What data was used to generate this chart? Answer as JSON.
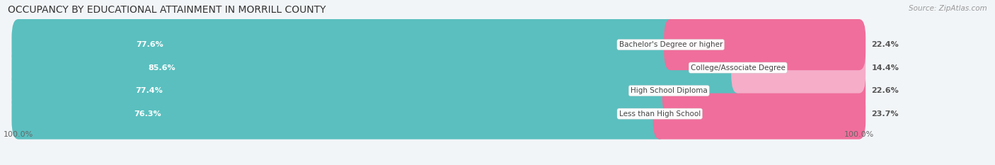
{
  "title": "OCCUPANCY BY EDUCATIONAL ATTAINMENT IN MORRILL COUNTY",
  "source": "Source: ZipAtlas.com",
  "categories": [
    "Less than High School",
    "High School Diploma",
    "College/Associate Degree",
    "Bachelor's Degree or higher"
  ],
  "owner_values": [
    76.3,
    77.4,
    85.6,
    77.6
  ],
  "renter_values": [
    23.7,
    22.6,
    14.4,
    22.4
  ],
  "owner_color": "#5bbfbf",
  "renter_color_1": "#f06e9b",
  "renter_color_2": "#f06e9b",
  "renter_color_3": "#f5adc8",
  "renter_color_4": "#f06e9b",
  "bg_bar_color": "#e8edf2",
  "background_color": "#f2f5f8",
  "title_fontsize": 10,
  "label_fontsize": 8,
  "tick_fontsize": 8,
  "legend_fontsize": 8,
  "source_fontsize": 7.5,
  "axis_label_left": "100.0%",
  "axis_label_right": "100.0%",
  "total_width": 100
}
